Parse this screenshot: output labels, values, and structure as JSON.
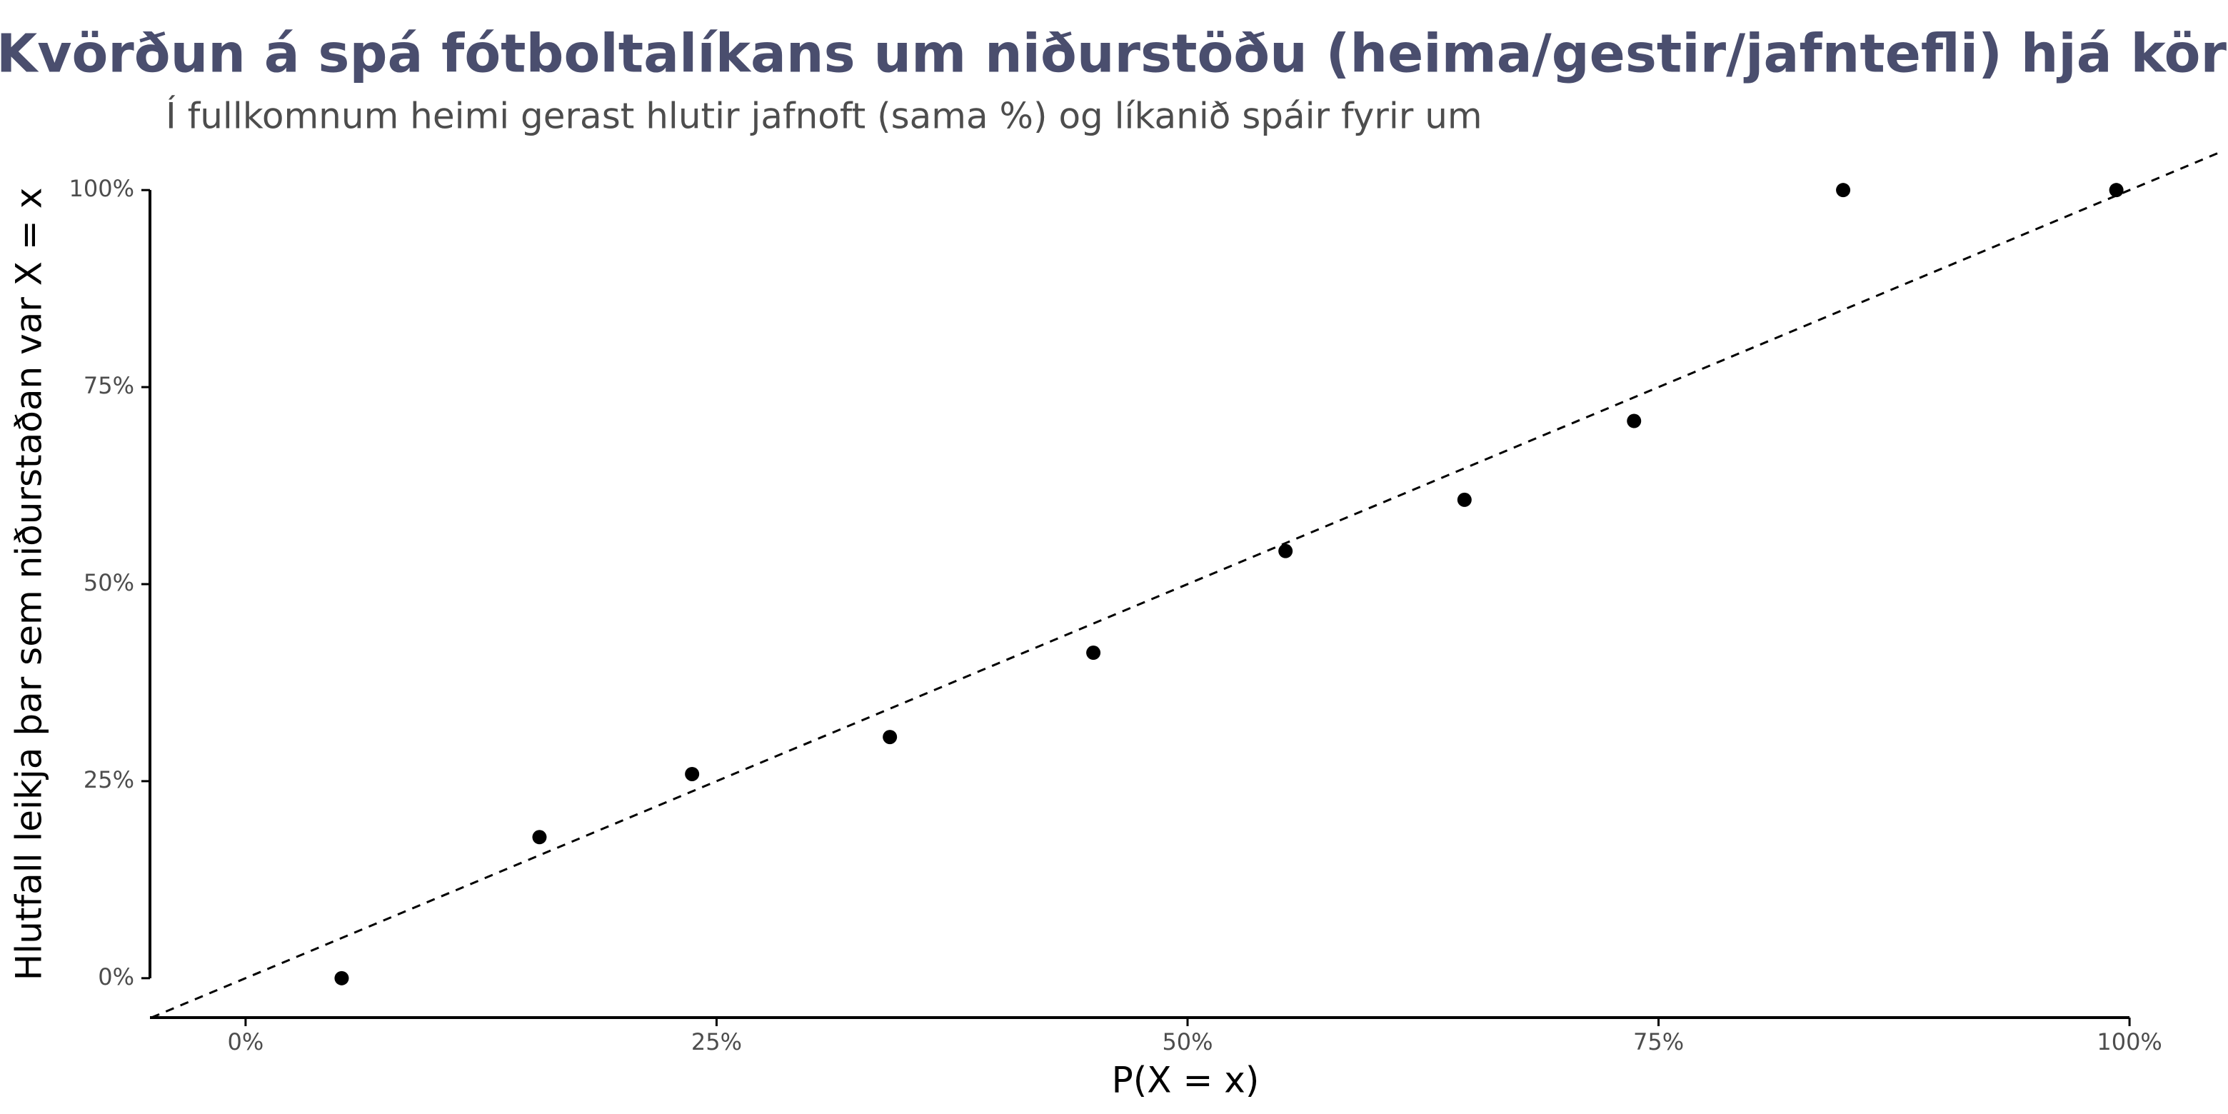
{
  "chart_data": {
    "type": "scatter",
    "title": "Kvörðun á spá fótboltalíkans um niðurstöðu (heima/gestir/jafntefli) hjá körlum",
    "subtitle": "Í fullkomnum heimi gerast hlutir jafnoft (sama %) og líkanið spáir fyrir um",
    "x_label": "P(X = x)",
    "y_label": "Hlutfall leikja þar sem niðurstaðan var X = x",
    "x": [
      5.1,
      15.6,
      23.7,
      34.2,
      45.0,
      55.2,
      64.7,
      73.7,
      84.8,
      99.3
    ],
    "values": [
      0,
      17.9,
      25.9,
      30.6,
      41.3,
      54.2,
      60.7,
      70.7,
      100,
      100
    ],
    "color": "#000000",
    "xlim": [
      -5,
      105
    ],
    "ylim": [
      -5,
      105
    ],
    "xticks": [
      {
        "value": 0,
        "label": "0%"
      },
      {
        "value": 25,
        "label": "25%"
      },
      {
        "value": 50,
        "label": "50%"
      },
      {
        "value": 75,
        "label": "75%"
      },
      {
        "value": 100,
        "label": "100%"
      }
    ],
    "yticks": [
      {
        "value": 0,
        "label": "0%"
      },
      {
        "value": 25,
        "label": "25%"
      },
      {
        "value": 50,
        "label": "50%"
      },
      {
        "value": 75,
        "label": "75%"
      },
      {
        "value": 100,
        "label": "100%"
      }
    ],
    "grid": false
  }
}
